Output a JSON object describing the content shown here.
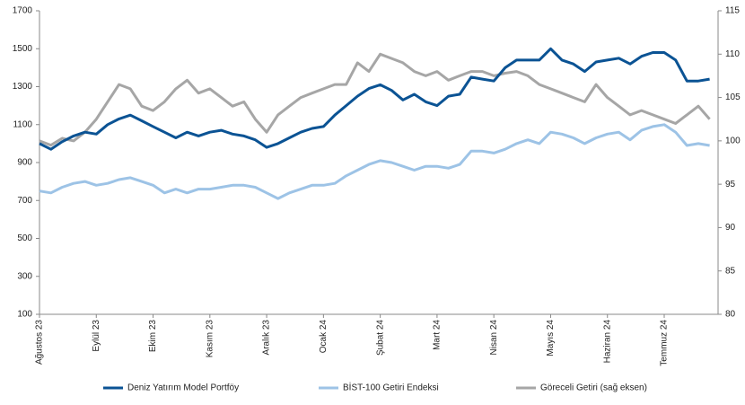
{
  "chart_data": {
    "type": "line",
    "categories": [
      "Ağustos 23",
      null,
      null,
      null,
      null,
      "Eylül 23",
      null,
      null,
      null,
      null,
      "Ekim 23",
      null,
      null,
      null,
      null,
      "Kasım 23",
      null,
      null,
      null,
      null,
      "Aralık 23",
      null,
      null,
      null,
      null,
      "Ocak 24",
      null,
      null,
      null,
      null,
      "Şubat 24",
      null,
      null,
      null,
      null,
      "Mart 24",
      null,
      null,
      null,
      null,
      "Nisan 24",
      null,
      null,
      null,
      null,
      "Mayıs 24",
      null,
      null,
      null,
      null,
      "Haziran 24",
      null,
      null,
      null,
      null,
      "Temmuz 24",
      null,
      null,
      null,
      null
    ],
    "series": [
      {
        "name": "Deniz Yatırım Model Portföy",
        "color": "#0b5394",
        "values": [
          1000,
          970,
          1010,
          1040,
          1060,
          1050,
          1100,
          1130,
          1150,
          1120,
          1090,
          1060,
          1030,
          1060,
          1040,
          1060,
          1070,
          1050,
          1040,
          1020,
          980,
          1000,
          1030,
          1060,
          1080,
          1090,
          1150,
          1200,
          1250,
          1290,
          1310,
          1280,
          1230,
          1260,
          1220,
          1200,
          1250,
          1260,
          1350,
          1340,
          1330,
          1400,
          1440,
          1440,
          1440,
          1500,
          1440,
          1420,
          1380,
          1430,
          1440,
          1450,
          1420,
          1460,
          1480,
          1480,
          1440,
          1330,
          1330,
          1340
        ]
      },
      {
        "name": "BİST-100 Getiri Endeksi",
        "color": "#9dc3e6",
        "values": [
          750,
          740,
          770,
          790,
          800,
          780,
          790,
          810,
          820,
          800,
          780,
          740,
          760,
          740,
          760,
          760,
          770,
          780,
          780,
          770,
          740,
          710,
          740,
          760,
          780,
          780,
          790,
          830,
          860,
          890,
          910,
          900,
          880,
          860,
          880,
          880,
          870,
          890,
          960,
          960,
          950,
          970,
          1000,
          1020,
          1000,
          1060,
          1050,
          1030,
          1000,
          1030,
          1050,
          1060,
          1020,
          1070,
          1090,
          1100,
          1060,
          990,
          1000,
          990
        ]
      },
      {
        "name": "Göreceli Getiri (sağ eksen)",
        "color": "#a6a6a6",
        "axis": "y2",
        "values": [
          100,
          99.5,
          100.3,
          100,
          101,
          102.5,
          104.5,
          106.5,
          106,
          104,
          103.5,
          104.5,
          106,
          107,
          105.5,
          106,
          105,
          104,
          104.5,
          102.5,
          101,
          103,
          104,
          105,
          105.5,
          106,
          106.5,
          106.5,
          109,
          108,
          110,
          109.5,
          109,
          108,
          107.5,
          108,
          107,
          107.5,
          108,
          108,
          107.5,
          107.8,
          108,
          107.5,
          106.5,
          106,
          105.5,
          105,
          104.5,
          106.5,
          105,
          104,
          103,
          103.5,
          103,
          102.5,
          102,
          103,
          104,
          102.5
        ]
      }
    ],
    "ylim": [
      100,
      1700
    ],
    "yticks": [
      100,
      300,
      500,
      700,
      900,
      1100,
      1300,
      1500,
      1700
    ],
    "y2lim": [
      80,
      115
    ],
    "y2ticks": [
      80,
      85,
      90,
      95,
      100,
      105,
      110,
      115
    ],
    "legend": "bottom",
    "grid": false
  }
}
